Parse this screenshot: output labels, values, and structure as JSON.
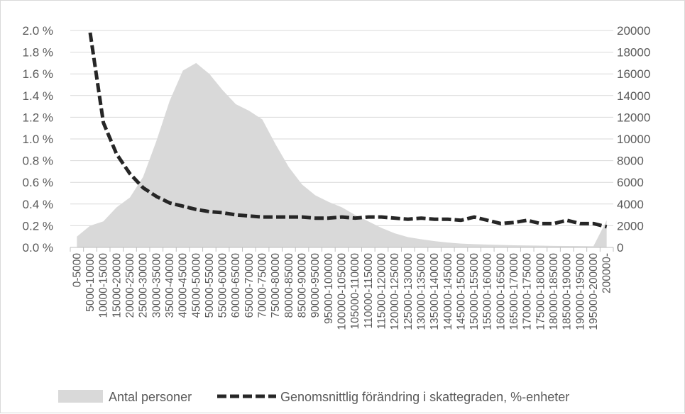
{
  "chart_data": {
    "type": "area",
    "title": "",
    "xlabel": "",
    "ylabel": "",
    "grid": true,
    "legend_position": "bottom",
    "categories": [
      "0-5000",
      "5000-10000",
      "10000-15000",
      "15000-20000",
      "20000-25000",
      "25000-30000",
      "30000-35000",
      "35000-40000",
      "40000-45000",
      "45000-50000",
      "50000-55000",
      "55000-60000",
      "60000-65000",
      "65000-70000",
      "70000-75000",
      "75000-80000",
      "80000-85000",
      "85000-90000",
      "90000-95000",
      "95000-100000",
      "100000-105000",
      "105000-110000",
      "110000-115000",
      "115000-120000",
      "120000-125000",
      "125000-130000",
      "130000-135000",
      "135000-140000",
      "140000-145000",
      "145000-150000",
      "150000-155000",
      "155000-160000",
      "160000-165000",
      "165000-170000",
      "170000-175000",
      "175000-180000",
      "180000-185000",
      "185000-190000",
      "190000-195000",
      "195000-200000",
      "200000-"
    ],
    "y_left": {
      "min": 0,
      "max": 2.0,
      "step": 0.2,
      "tick_labels": [
        "0.0 %",
        "0.2 %",
        "0.4 %",
        "0.6 %",
        "0.8 %",
        "1.0 %",
        "1.2 %",
        "1.4 %",
        "1.6 %",
        "1.8 %",
        "2.0 %"
      ]
    },
    "y_right": {
      "min": 0,
      "max": 20000,
      "step": 2000,
      "tick_labels": [
        "0",
        "2000",
        "4000",
        "6000",
        "8000",
        "10000",
        "12000",
        "14000",
        "16000",
        "18000",
        "20000"
      ]
    },
    "series": [
      {
        "name": "Antal personer",
        "type": "area",
        "axis": "right",
        "color": "#d9d9d9",
        "values": [
          1000,
          2000,
          2400,
          3700,
          4600,
          6500,
          9800,
          13500,
          16300,
          17000,
          16000,
          14500,
          13200,
          12600,
          11800,
          9500,
          7400,
          5800,
          4800,
          4200,
          3700,
          3000,
          2400,
          1800,
          1300,
          950,
          750,
          580,
          450,
          350,
          300,
          260,
          230,
          200,
          180,
          160,
          140,
          130,
          120,
          110,
          2500
        ]
      },
      {
        "name": "Genomsnittlig förändring i skattegraden, %-enheter",
        "type": "line",
        "axis": "left",
        "color": "#262626",
        "dash": true,
        "values": [
          null,
          1.98,
          1.15,
          0.86,
          0.68,
          0.55,
          0.47,
          0.41,
          0.38,
          0.35,
          0.33,
          0.32,
          0.3,
          0.29,
          0.28,
          0.28,
          0.28,
          0.28,
          0.27,
          0.27,
          0.28,
          0.27,
          0.28,
          0.28,
          0.27,
          0.26,
          0.27,
          0.26,
          0.26,
          0.25,
          0.28,
          0.25,
          0.22,
          0.23,
          0.25,
          0.22,
          0.22,
          0.25,
          0.22,
          0.22,
          0.19
        ]
      }
    ]
  }
}
